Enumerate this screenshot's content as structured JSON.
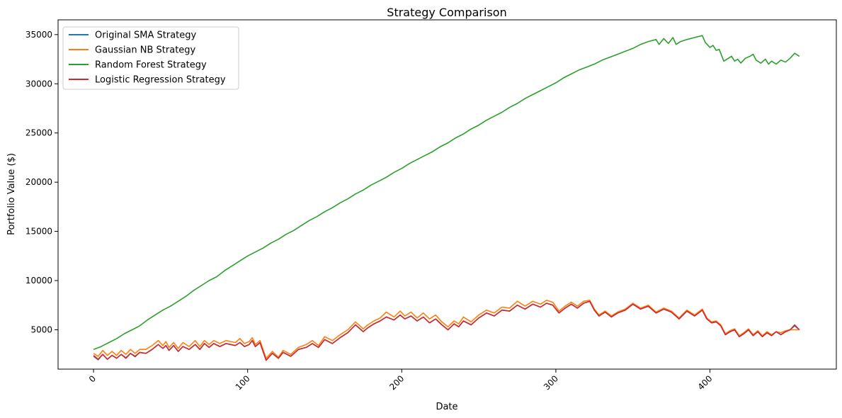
{
  "chart_data": {
    "type": "line",
    "title": "Strategy Comparison",
    "xlabel": "Date",
    "ylabel": "Portfolio Value ($)",
    "xlim": [
      -23,
      482
    ],
    "ylim": [
      1000,
      36500
    ],
    "xticks": [
      0,
      100,
      200,
      300,
      400
    ],
    "yticks": [
      5000,
      10000,
      15000,
      20000,
      25000,
      30000,
      35000
    ],
    "xtick_rotation": 45,
    "grid": false,
    "legend_position": "top-left",
    "series": [
      {
        "name": "Original SMA Strategy",
        "color": "#1f77b4",
        "x": [
          0,
          3,
          6,
          9,
          12,
          15,
          18,
          21,
          24,
          27,
          30,
          34,
          38,
          42,
          45,
          47,
          49,
          52,
          55,
          58,
          62,
          66,
          69,
          72,
          75,
          78,
          82,
          86,
          89,
          92,
          95,
          98,
          101,
          103,
          105,
          108,
          112,
          116,
          120,
          123,
          128,
          133,
          138,
          142,
          146,
          150,
          155,
          160,
          165,
          170,
          175,
          178,
          182,
          186,
          190,
          195,
          199,
          202,
          206,
          210,
          214,
          218,
          222,
          226,
          230,
          234,
          237,
          240,
          245,
          250,
          255,
          260,
          265,
          270,
          275,
          280,
          285,
          290,
          294,
          298,
          302,
          306,
          310,
          314,
          318,
          322,
          325,
          328,
          332,
          336,
          340,
          345,
          350,
          355,
          360,
          365,
          370,
          375,
          380,
          385,
          390,
          395,
          398,
          401,
          404,
          407,
          410,
          413,
          416,
          419,
          422,
          425,
          428,
          431,
          434,
          437,
          440,
          443,
          446,
          449,
          452,
          455,
          458
        ],
        "y": [
          2300,
          1950,
          2500,
          2000,
          2400,
          2100,
          2500,
          2150,
          2600,
          2250,
          2700,
          2600,
          3000,
          3500,
          3100,
          3400,
          2900,
          3400,
          2800,
          3300,
          3000,
          3500,
          3000,
          3600,
          3200,
          3600,
          3300,
          3600,
          3500,
          3400,
          3700,
          3300,
          3500,
          3900,
          3300,
          3700,
          1900,
          2600,
          2100,
          2700,
          2300,
          3000,
          3200,
          3600,
          3200,
          4000,
          3600,
          4200,
          4700,
          5500,
          4800,
          5200,
          5600,
          5900,
          6300,
          6000,
          6500,
          6100,
          6400,
          5900,
          6300,
          5700,
          6100,
          5500,
          5000,
          5600,
          5300,
          5900,
          5500,
          6200,
          6700,
          6400,
          7000,
          6900,
          7500,
          7100,
          7600,
          7300,
          7700,
          7500,
          6700,
          7200,
          7600,
          7200,
          7700,
          7900,
          7000,
          6400,
          6800,
          6300,
          6700,
          7000,
          7600,
          7100,
          7400,
          6700,
          7100,
          6800,
          6100,
          6900,
          6400,
          7000,
          6100,
          5700,
          5800,
          5400,
          4500,
          4800,
          5000,
          4300,
          4600,
          5000,
          4400,
          4800,
          4300,
          4700,
          4400,
          4800,
          4500,
          4800,
          5000,
          5400,
          5000
        ]
      },
      {
        "name": "Gaussian NB Strategy",
        "color": "#ff7f0e",
        "x": [
          0,
          3,
          6,
          9,
          12,
          15,
          18,
          21,
          24,
          27,
          30,
          34,
          38,
          42,
          45,
          47,
          49,
          52,
          55,
          58,
          62,
          66,
          69,
          72,
          75,
          78,
          82,
          86,
          89,
          92,
          95,
          98,
          101,
          103,
          105,
          108,
          112,
          116,
          120,
          123,
          128,
          133,
          138,
          142,
          146,
          150,
          155,
          160,
          165,
          170,
          175,
          178,
          182,
          186,
          190,
          195,
          199,
          202,
          206,
          210,
          214,
          218,
          222,
          226,
          230,
          234,
          237,
          240,
          245,
          250,
          255,
          260,
          265,
          270,
          275,
          280,
          285,
          290,
          294,
          298,
          302,
          306,
          310,
          314,
          318,
          322,
          325,
          328,
          332,
          336,
          340,
          345,
          350,
          355,
          360,
          365,
          370,
          375,
          380,
          385,
          390,
          395,
          398,
          401,
          404,
          407,
          410,
          413,
          416,
          419,
          422,
          425,
          428,
          431,
          434,
          437,
          440,
          443,
          446,
          449,
          452,
          455,
          458
        ],
        "y": [
          2600,
          2300,
          2900,
          2400,
          2800,
          2400,
          2900,
          2500,
          3000,
          2600,
          3000,
          3000,
          3400,
          3900,
          3400,
          3800,
          3200,
          3700,
          3100,
          3700,
          3300,
          3900,
          3300,
          3900,
          3500,
          3900,
          3600,
          3900,
          3800,
          3700,
          4100,
          3600,
          3800,
          4200,
          3500,
          3900,
          2100,
          2800,
          2200,
          2900,
          2500,
          3200,
          3500,
          3900,
          3400,
          4300,
          3900,
          4500,
          5000,
          5800,
          5100,
          5500,
          5900,
          6200,
          6800,
          6300,
          6900,
          6400,
          6800,
          6200,
          6700,
          6100,
          6500,
          5800,
          5300,
          5900,
          5600,
          6300,
          5800,
          6500,
          7000,
          6700,
          7300,
          7200,
          7900,
          7400,
          7900,
          7600,
          8000,
          7800,
          6900,
          7400,
          7800,
          7400,
          7900,
          8000,
          7100,
          6500,
          6900,
          6400,
          6800,
          7100,
          7700,
          7200,
          7500,
          6800,
          7200,
          6900,
          6200,
          7000,
          6500,
          7100,
          6200,
          5800,
          5900,
          5500,
          4600,
          4900,
          5100,
          4400,
          4700,
          5100,
          4500,
          4900,
          4400,
          4800,
          4500,
          4800,
          4700,
          4900,
          5000,
          5000,
          5000
        ]
      },
      {
        "name": "Random Forest Strategy",
        "color": "#2ca02c",
        "x": [
          0,
          5,
          10,
          15,
          20,
          25,
          30,
          35,
          40,
          45,
          50,
          55,
          60,
          65,
          70,
          75,
          80,
          85,
          90,
          95,
          100,
          105,
          110,
          115,
          120,
          125,
          130,
          135,
          140,
          145,
          150,
          155,
          160,
          165,
          170,
          175,
          180,
          185,
          190,
          195,
          200,
          205,
          210,
          215,
          220,
          225,
          230,
          235,
          240,
          245,
          250,
          255,
          260,
          265,
          270,
          275,
          280,
          285,
          290,
          295,
          300,
          305,
          310,
          315,
          320,
          325,
          330,
          335,
          340,
          345,
          350,
          355,
          360,
          365,
          367,
          370,
          373,
          376,
          378,
          381,
          385,
          390,
          395,
          397,
          400,
          402,
          404,
          406,
          409,
          412,
          414,
          416,
          418,
          420,
          423,
          426,
          428,
          430,
          433,
          436,
          438,
          440,
          443,
          446,
          449,
          452,
          455,
          458
        ],
        "y": [
          3000,
          3300,
          3700,
          4100,
          4600,
          5000,
          5400,
          6000,
          6500,
          7000,
          7400,
          7900,
          8400,
          9000,
          9500,
          10000,
          10400,
          11000,
          11500,
          12000,
          12500,
          12900,
          13300,
          13800,
          14200,
          14700,
          15100,
          15600,
          16100,
          16500,
          17000,
          17400,
          17900,
          18300,
          18800,
          19200,
          19700,
          20100,
          20500,
          21000,
          21400,
          21900,
          22300,
          22700,
          23100,
          23600,
          24000,
          24500,
          24900,
          25400,
          25800,
          26300,
          26700,
          27100,
          27600,
          28000,
          28500,
          28900,
          29300,
          29700,
          30100,
          30600,
          31000,
          31400,
          31700,
          32000,
          32400,
          32700,
          33000,
          33300,
          33600,
          34000,
          34300,
          34500,
          34000,
          34600,
          34100,
          34700,
          34000,
          34300,
          34500,
          34700,
          34900,
          34200,
          33700,
          33900,
          33400,
          33500,
          32300,
          32600,
          32800,
          32300,
          32500,
          32100,
          32600,
          32800,
          33000,
          32400,
          32100,
          32500,
          32000,
          32300,
          32000,
          32400,
          32200,
          32600,
          33100,
          32800
        ]
      },
      {
        "name": "Logistic Regression Strategy",
        "color": "#d62728",
        "x": [
          0,
          3,
          6,
          9,
          12,
          15,
          18,
          21,
          24,
          27,
          30,
          34,
          38,
          42,
          45,
          47,
          49,
          52,
          55,
          58,
          62,
          66,
          69,
          72,
          75,
          78,
          82,
          86,
          89,
          92,
          95,
          98,
          101,
          103,
          105,
          108,
          112,
          116,
          120,
          123,
          128,
          133,
          138,
          142,
          146,
          150,
          155,
          160,
          165,
          170,
          175,
          178,
          182,
          186,
          190,
          195,
          199,
          202,
          206,
          210,
          214,
          218,
          222,
          226,
          230,
          234,
          237,
          240,
          245,
          250,
          255,
          260,
          265,
          270,
          275,
          280,
          285,
          290,
          294,
          298,
          302,
          306,
          310,
          314,
          318,
          322,
          325,
          328,
          332,
          336,
          340,
          345,
          350,
          355,
          360,
          365,
          370,
          375,
          380,
          385,
          390,
          395,
          398,
          401,
          404,
          407,
          410,
          413,
          416,
          419,
          422,
          425,
          428,
          431,
          434,
          437,
          440,
          443,
          446,
          449,
          452,
          455,
          458
        ],
        "y": [
          2400,
          2000,
          2500,
          2000,
          2400,
          2100,
          2500,
          2100,
          2600,
          2300,
          2700,
          2600,
          3000,
          3500,
          3100,
          3400,
          2900,
          3400,
          2800,
          3300,
          3000,
          3500,
          3000,
          3600,
          3200,
          3600,
          3300,
          3600,
          3500,
          3400,
          3700,
          3300,
          3500,
          3900,
          3300,
          3700,
          1900,
          2600,
          2100,
          2700,
          2300,
          3000,
          3200,
          3600,
          3200,
          4000,
          3600,
          4200,
          4700,
          5500,
          4800,
          5200,
          5600,
          5900,
          6300,
          6000,
          6500,
          6100,
          6400,
          5900,
          6300,
          5700,
          6100,
          5500,
          5000,
          5600,
          5300,
          5900,
          5500,
          6200,
          6700,
          6400,
          7000,
          6900,
          7500,
          7100,
          7600,
          7300,
          7700,
          7500,
          6700,
          7200,
          7600,
          7200,
          7700,
          7900,
          7000,
          6400,
          6800,
          6300,
          6700,
          7000,
          7600,
          7100,
          7400,
          6700,
          7100,
          6800,
          6100,
          6900,
          6400,
          7000,
          6100,
          5700,
          5800,
          5400,
          4500,
          4800,
          5000,
          4300,
          4600,
          5000,
          4400,
          4800,
          4300,
          4700,
          4400,
          4800,
          4500,
          4800,
          5000,
          5500,
          5000
        ]
      }
    ]
  }
}
